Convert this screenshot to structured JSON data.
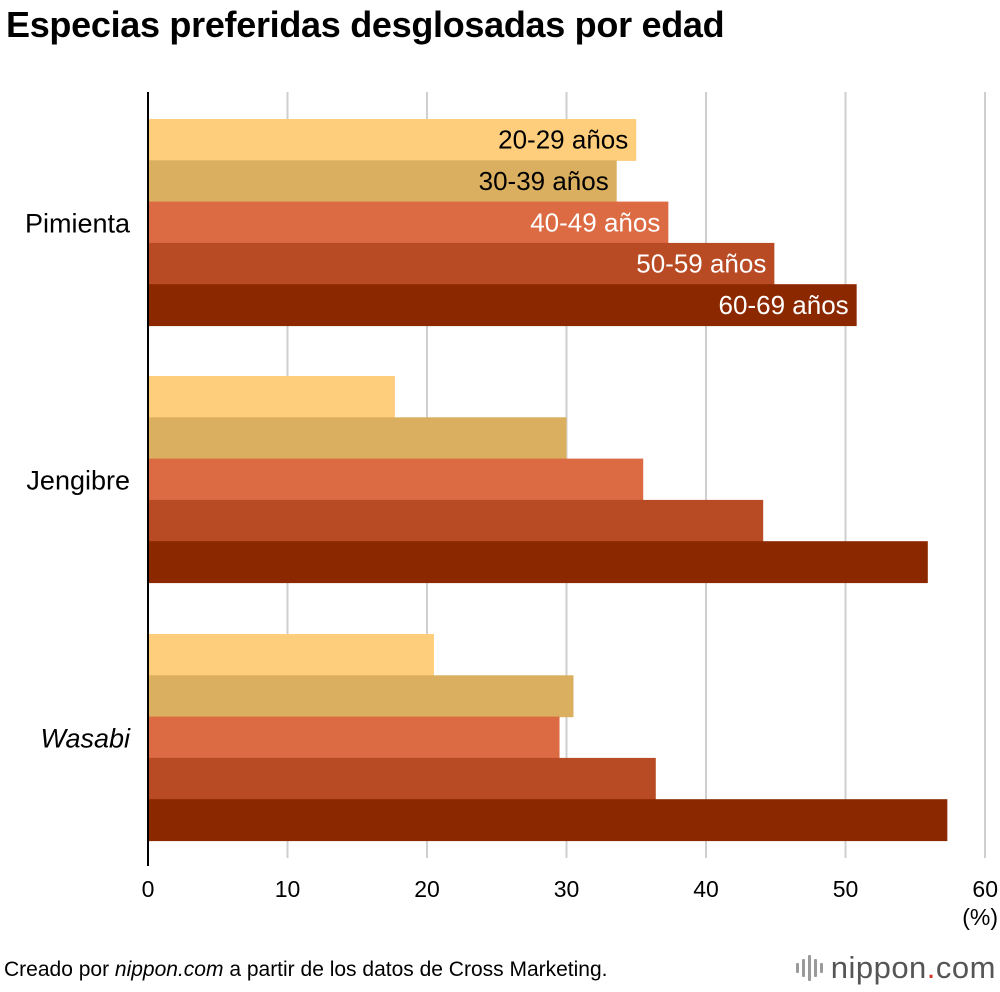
{
  "title": "Especias preferidas desglosadas por edad",
  "footer": {
    "prefix": "Creado por ",
    "source_site": "nippon.com",
    "suffix": " a partir de los datos de Cross Marketing."
  },
  "logo": {
    "name": "nippon",
    "dot": ".",
    "tld": "com"
  },
  "colors": [
    "#FFCE7D",
    "#DBAF60",
    "#DC6A42",
    "#B84A24",
    "#8C2800"
  ],
  "chart_data": {
    "type": "bar",
    "orientation": "horizontal",
    "title": "Especias preferidas desglosadas por edad",
    "xlabel": "(%)",
    "ylabel": "",
    "xlim": [
      0,
      60
    ],
    "xticks": [
      0,
      10,
      20,
      30,
      40,
      50,
      60
    ],
    "grid": true,
    "legend": "inline-labels-on-first-group",
    "categories": [
      "Pimienta",
      "Jengibre",
      "Wasabi"
    ],
    "series": [
      {
        "name": "20-29 años",
        "values": [
          35.0,
          17.7,
          20.5
        ]
      },
      {
        "name": "30-39 años",
        "values": [
          33.6,
          30.0,
          30.5
        ]
      },
      {
        "name": "40-49 años",
        "values": [
          37.3,
          35.5,
          29.5
        ]
      },
      {
        "name": "50-59 años",
        "values": [
          44.9,
          44.1,
          36.4
        ]
      },
      {
        "name": "60-69 años",
        "values": [
          50.8,
          55.9,
          57.3
        ]
      }
    ]
  }
}
